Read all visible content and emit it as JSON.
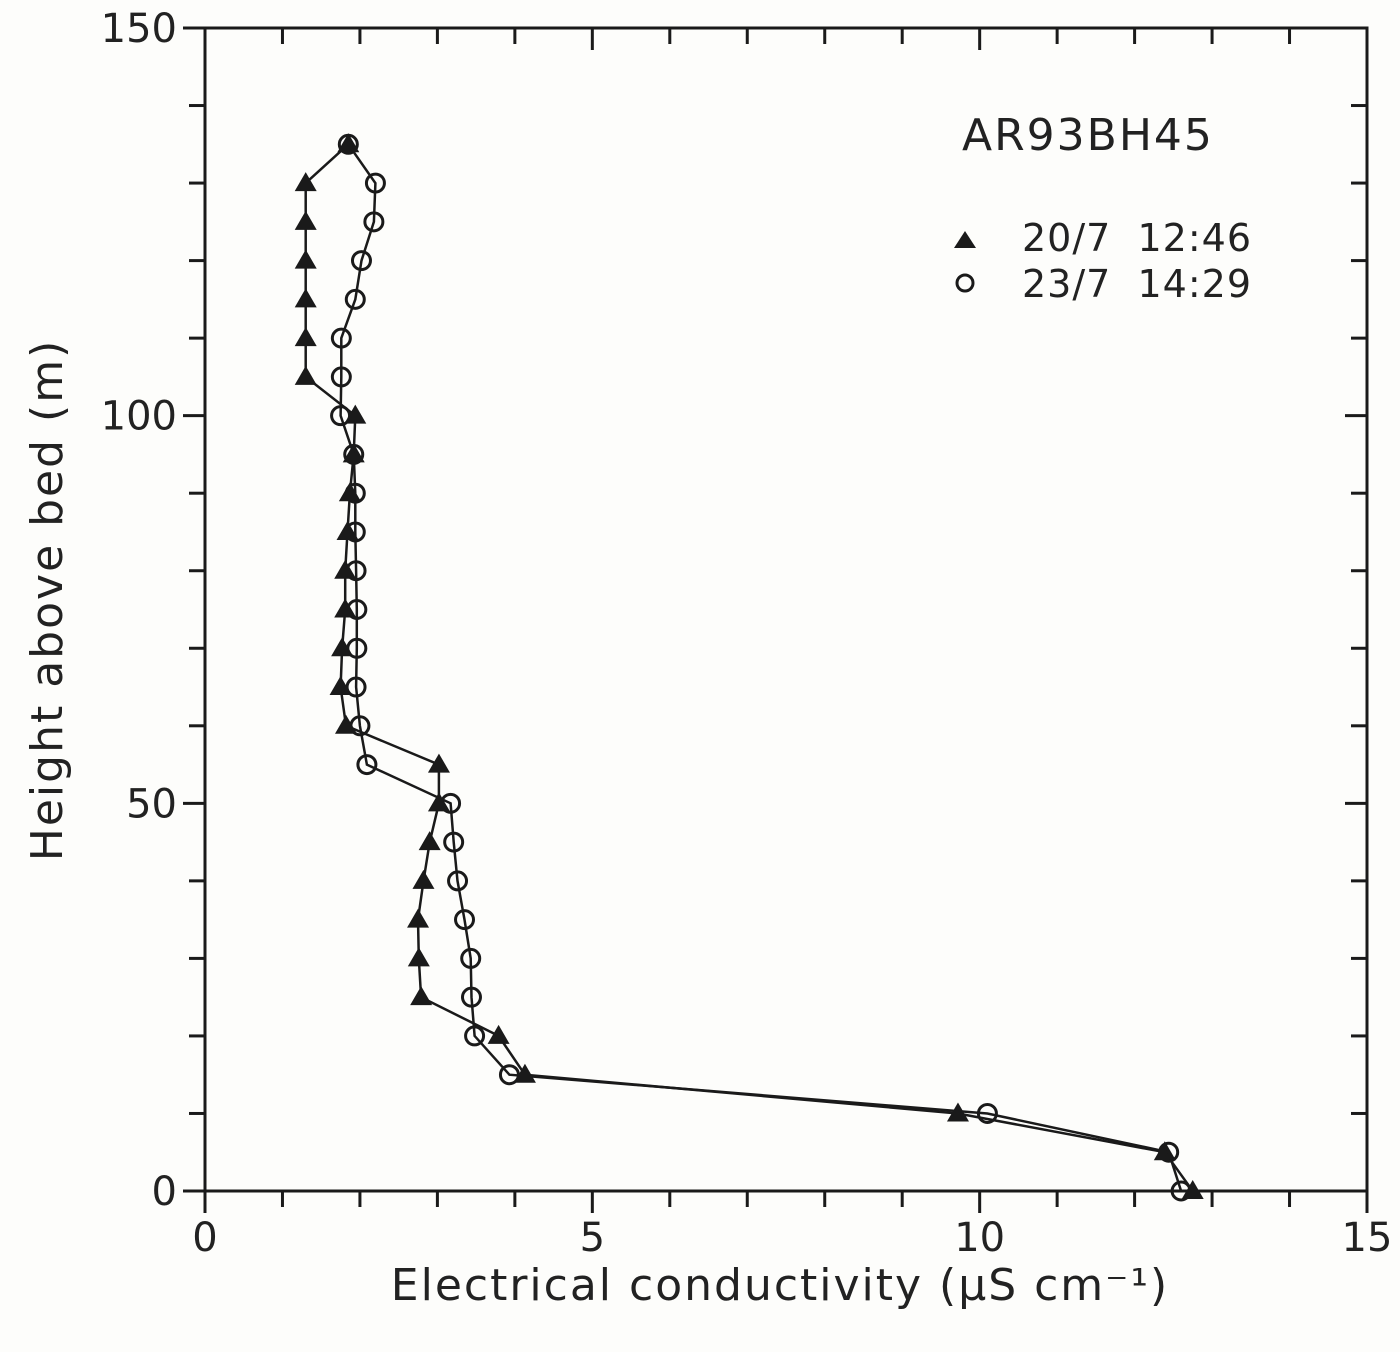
{
  "chart_data": {
    "type": "line",
    "title": "AR93BH45",
    "xlabel": "Electrical conductivity (µS cm⁻¹)",
    "ylabel": "Height above bed (m)",
    "xlim": [
      0,
      15
    ],
    "ylim": [
      0,
      150
    ],
    "xticks_major": [
      0,
      5,
      10,
      15
    ],
    "xticks_minor_step": 1,
    "yticks_major": [
      0,
      50,
      100,
      150
    ],
    "yticks_minor_step": 10,
    "grid": false,
    "legend_position": "upper right",
    "series": [
      {
        "name": "20/7 12:46",
        "marker": "filled-triangle",
        "points": [
          [
            1.85,
            135
          ],
          [
            1.3,
            130
          ],
          [
            1.3,
            125
          ],
          [
            1.3,
            120
          ],
          [
            1.3,
            115
          ],
          [
            1.3,
            110
          ],
          [
            1.3,
            105
          ],
          [
            1.94,
            100
          ],
          [
            1.92,
            95
          ],
          [
            1.87,
            90
          ],
          [
            1.84,
            85
          ],
          [
            1.81,
            80
          ],
          [
            1.81,
            75
          ],
          [
            1.77,
            70
          ],
          [
            1.75,
            65
          ],
          [
            1.82,
            60
          ],
          [
            3.02,
            55
          ],
          [
            3.02,
            50
          ],
          [
            2.9,
            45
          ],
          [
            2.82,
            40
          ],
          [
            2.75,
            35
          ],
          [
            2.76,
            30
          ],
          [
            2.79,
            25
          ],
          [
            3.79,
            20
          ],
          [
            4.13,
            15
          ],
          [
            9.72,
            10
          ],
          [
            12.39,
            5
          ],
          [
            12.75,
            0
          ]
        ]
      },
      {
        "name": "23/7 14:29",
        "marker": "open-circle",
        "points": [
          [
            1.85,
            135
          ],
          [
            2.2,
            130
          ],
          [
            2.18,
            125
          ],
          [
            2.02,
            120
          ],
          [
            1.94,
            115
          ],
          [
            1.76,
            110
          ],
          [
            1.76,
            105
          ],
          [
            1.75,
            100
          ],
          [
            1.92,
            95
          ],
          [
            1.94,
            90
          ],
          [
            1.94,
            85
          ],
          [
            1.95,
            80
          ],
          [
            1.96,
            75
          ],
          [
            1.96,
            70
          ],
          [
            1.95,
            65
          ],
          [
            2.0,
            60
          ],
          [
            2.09,
            55
          ],
          [
            3.17,
            50
          ],
          [
            3.21,
            45
          ],
          [
            3.26,
            40
          ],
          [
            3.35,
            35
          ],
          [
            3.43,
            30
          ],
          [
            3.44,
            25
          ],
          [
            3.48,
            20
          ],
          [
            3.93,
            15
          ],
          [
            10.1,
            10
          ],
          [
            12.44,
            5
          ],
          [
            12.6,
            0
          ]
        ]
      }
    ]
  },
  "legend": {
    "items": [
      {
        "label": "20/7  12:46",
        "marker": "filled-triangle-icon"
      },
      {
        "label": "23/7  14:29",
        "marker": "open-circle-icon"
      }
    ]
  },
  "colors": {
    "ink": "#1a1a1a",
    "background": "#fdfdfb"
  }
}
